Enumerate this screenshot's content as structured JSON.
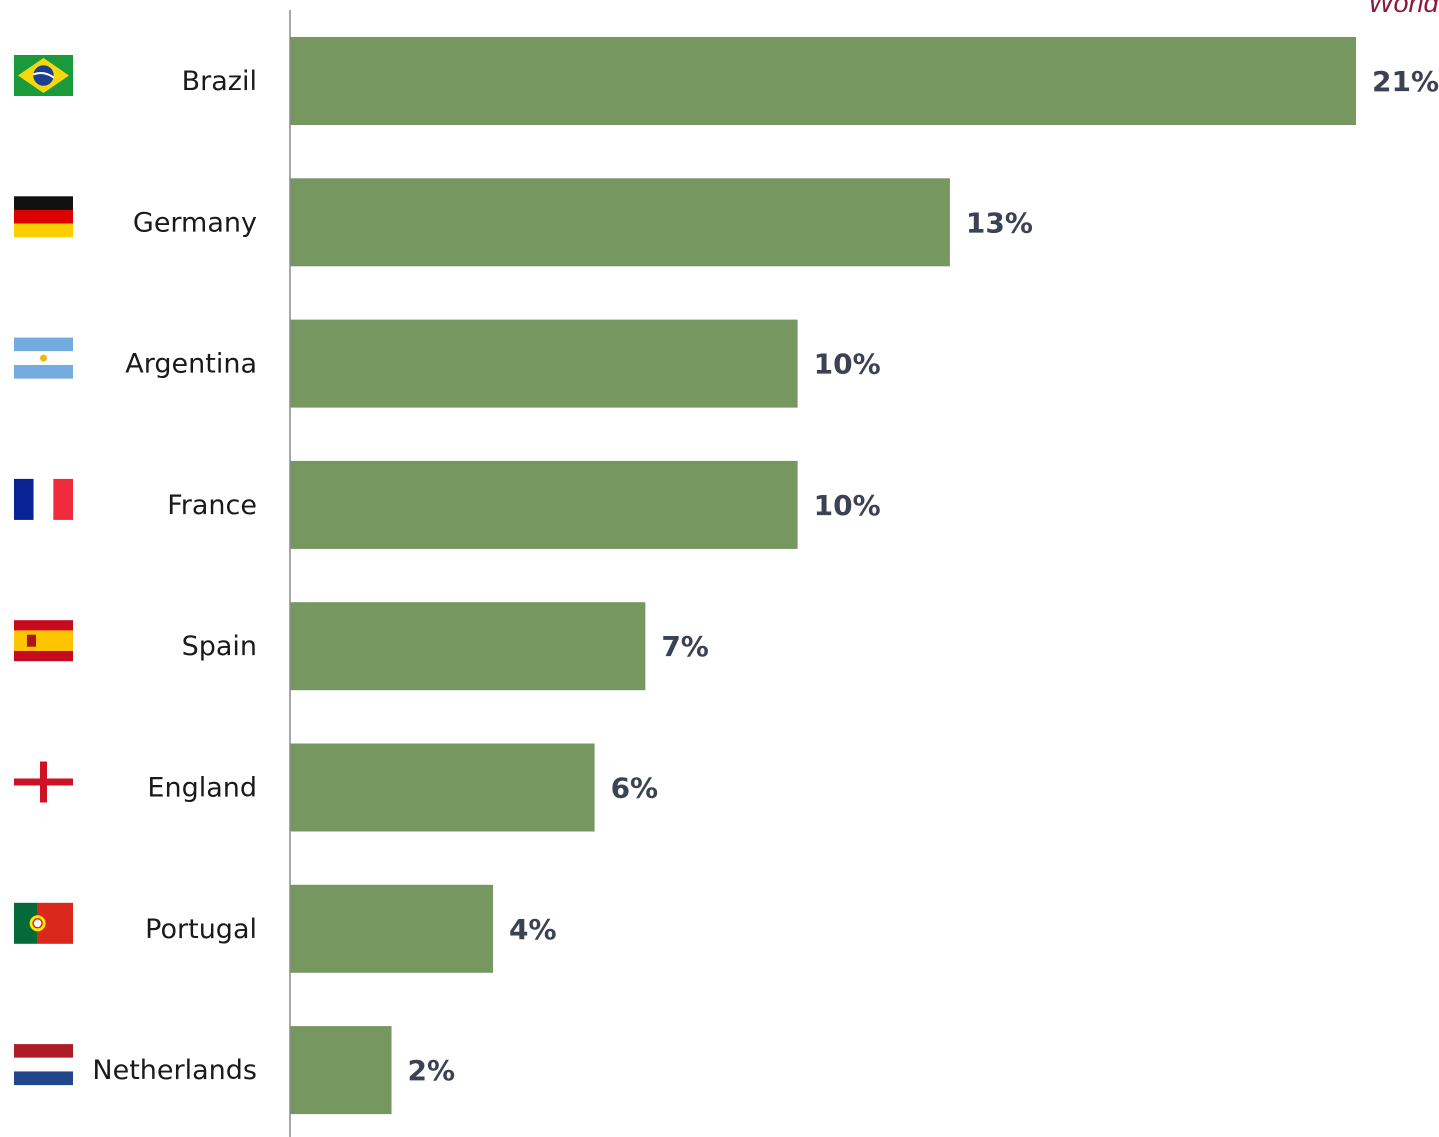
{
  "header": {
    "note_text": "World"
  },
  "colors": {
    "bar": "#769760",
    "axis": "#8c8c8c",
    "value_label": "#3b4254",
    "note": "#8a1a3a"
  },
  "chart_data": {
    "type": "bar",
    "orientation": "horizontal",
    "categories": [
      "Brazil",
      "Germany",
      "Argentina",
      "France",
      "Spain",
      "England",
      "Portugal",
      "Netherlands"
    ],
    "values": [
      21,
      13,
      10,
      10,
      7,
      6,
      4,
      2
    ],
    "value_labels": [
      "21%",
      "13%",
      "10%",
      "10%",
      "7%",
      "6%",
      "4%",
      "2%"
    ],
    "flag_icons": [
      "flag-brazil-icon",
      "flag-germany-icon",
      "flag-argentina-icon",
      "flag-france-icon",
      "flag-spain-icon",
      "flag-england-icon",
      "flag-portugal-icon",
      "flag-netherlands-icon"
    ],
    "xlim": [
      0,
      21
    ],
    "grid": false,
    "legend": "none"
  }
}
